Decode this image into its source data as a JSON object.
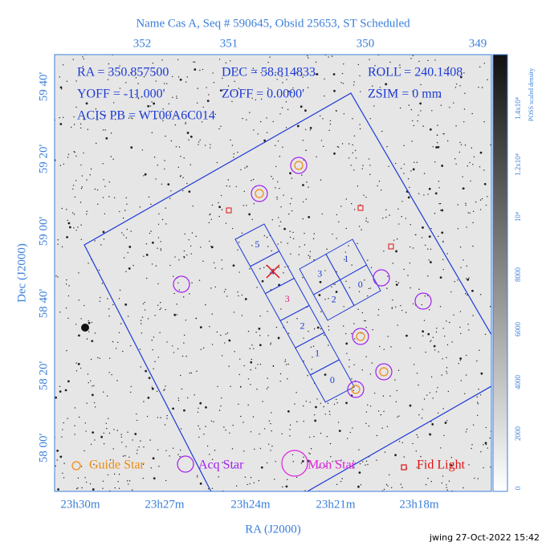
{
  "header": {
    "title": "Name Cas A, Seq # 590645, Obsid 25653, ST Scheduled"
  },
  "top_axis": [
    "352",
    "351",
    "350",
    "349"
  ],
  "bottom_axis": [
    "23h30m",
    "23h27m",
    "23h24m",
    "23h21m",
    "23h18m"
  ],
  "left_axis": [
    "59 40'",
    "59 20'",
    "59 00'",
    "58 40'",
    "58 20'",
    "58 00'"
  ],
  "x_label": "RA (J2000)",
  "y_label": "Dec (J2000)",
  "info": [
    "RA = 350.857500",
    "DEC = 58.814833",
    "ROLL = 240.1408",
    "YOFF = -11.000'",
    "ZOFF =  0.0000'",
    "ZSIM = 0 mm",
    "ACIS PB = WT00A6C014"
  ],
  "chips_s": [
    "0",
    "1",
    "2",
    "3",
    "4",
    "5"
  ],
  "chips_i": [
    "0",
    "1",
    "2",
    "3"
  ],
  "legend": [
    "Guide Star",
    "Acq Star",
    "Mon Star",
    "Fid Light"
  ],
  "colorbar": {
    "title": "POSS scaled density",
    "labels": [
      "0",
      "2000",
      "4000",
      "6000",
      "8000",
      "10⁴",
      "1.2x10⁴",
      "1.4x10⁴"
    ]
  },
  "footer": "jwing 27-Oct-2022 15:42"
}
